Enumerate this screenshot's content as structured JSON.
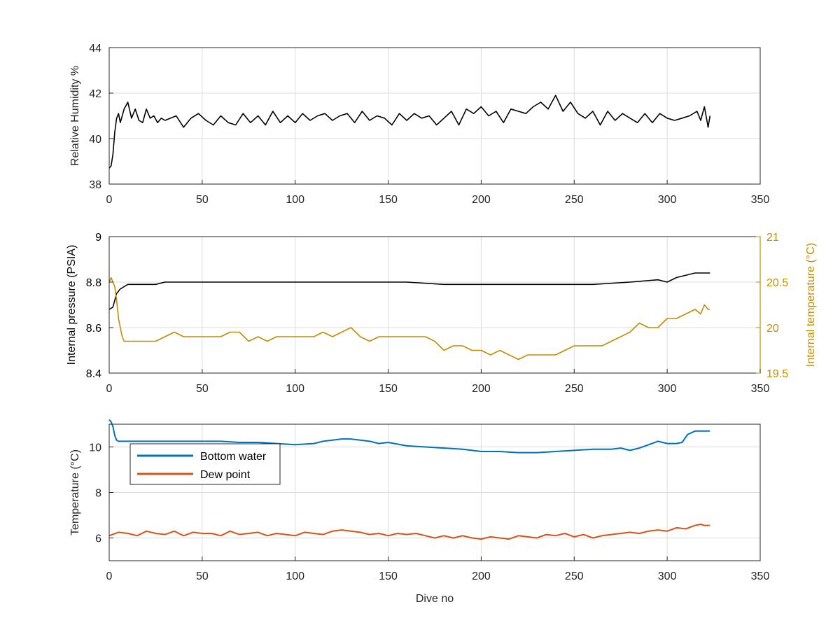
{
  "colors": {
    "black": "#000000",
    "pressure": "#000000",
    "internal_temperature": "#c08c00",
    "bottom_water": "#0072bd",
    "dew_point": "#d95319",
    "grid": "#dcdcdc",
    "axis": "#262626"
  },
  "chart_data": [
    {
      "type": "line",
      "id": "humidity",
      "title": "",
      "xlabel": "",
      "ylabel": "Relative Humidity %",
      "xlim": [
        0,
        350
      ],
      "ylim": [
        38,
        44
      ],
      "xticks": [
        0,
        50,
        100,
        150,
        200,
        250,
        300,
        350
      ],
      "yticks": [
        38,
        40,
        42,
        44
      ],
      "xtick_labels": [
        "0",
        "50",
        "100",
        "150",
        "200",
        "250",
        "300",
        "350"
      ],
      "ytick_labels": [
        "38",
        "40",
        "42",
        "44"
      ],
      "grid": true,
      "legend": "none",
      "series": [
        {
          "color_key": "black",
          "x": [
            0,
            1,
            2,
            3,
            4,
            5,
            6,
            8,
            10,
            12,
            14,
            16,
            18,
            20,
            22,
            24,
            26,
            28,
            30,
            33,
            36,
            40,
            44,
            48,
            52,
            56,
            60,
            64,
            68,
            72,
            76,
            80,
            84,
            88,
            92,
            96,
            100,
            104,
            108,
            112,
            116,
            120,
            124,
            128,
            132,
            136,
            140,
            144,
            148,
            152,
            156,
            160,
            164,
            168,
            172,
            176,
            180,
            184,
            188,
            192,
            196,
            200,
            204,
            208,
            212,
            216,
            220,
            224,
            228,
            232,
            236,
            240,
            244,
            248,
            252,
            256,
            260,
            264,
            268,
            272,
            276,
            280,
            284,
            288,
            292,
            296,
            300,
            304,
            308,
            312,
            316,
            318,
            320,
            322,
            323
          ],
          "y": [
            38.7,
            38.8,
            39.3,
            40.3,
            40.9,
            41.1,
            40.7,
            41.3,
            41.6,
            40.9,
            41.3,
            40.8,
            40.7,
            41.3,
            40.9,
            41.0,
            40.7,
            40.9,
            40.8,
            40.9,
            41.0,
            40.5,
            40.9,
            41.1,
            40.8,
            40.6,
            41.0,
            40.7,
            40.6,
            41.1,
            40.7,
            41.0,
            40.6,
            41.2,
            40.7,
            41.0,
            40.7,
            41.1,
            40.8,
            41.0,
            41.1,
            40.8,
            41.0,
            41.1,
            40.7,
            41.2,
            40.8,
            41.0,
            40.9,
            40.6,
            41.1,
            40.8,
            41.1,
            40.9,
            41.0,
            40.6,
            40.9,
            41.2,
            40.6,
            41.3,
            41.1,
            41.4,
            41.0,
            41.2,
            40.7,
            41.3,
            41.2,
            41.1,
            41.4,
            41.6,
            41.3,
            41.9,
            41.2,
            41.6,
            41.1,
            40.9,
            41.2,
            40.6,
            41.2,
            40.8,
            41.1,
            40.9,
            40.7,
            41.1,
            40.7,
            41.1,
            40.9,
            40.8,
            40.9,
            41.0,
            41.2,
            40.8,
            41.4,
            40.5,
            41.0
          ]
        }
      ]
    },
    {
      "type": "line",
      "id": "pressure-temperature",
      "title": "",
      "xlabel": "",
      "ylabel": "Internal pressure (PSIA)",
      "ylabel_right": "Internal temperature (°C)",
      "xlim": [
        0,
        350
      ],
      "ylim": [
        8.4,
        9
      ],
      "ylim_right": [
        19.5,
        21
      ],
      "xticks": [
        0,
        50,
        100,
        150,
        200,
        250,
        300,
        350
      ],
      "yticks": [
        8.4,
        8.6,
        8.8,
        9
      ],
      "yticks_right": [
        19.5,
        20,
        20.5,
        21
      ],
      "xtick_labels": [
        "0",
        "50",
        "100",
        "150",
        "200",
        "250",
        "300",
        "350"
      ],
      "ytick_labels": [
        "8.4",
        "8.6",
        "8.8",
        "9"
      ],
      "ytick_labels_right": [
        "19.5",
        "20",
        "20.5",
        "21"
      ],
      "grid": true,
      "legend": "none",
      "series": [
        {
          "axis": "left",
          "color_key": "pressure",
          "x": [
            0,
            2,
            4,
            6,
            8,
            10,
            15,
            20,
            25,
            30,
            40,
            60,
            80,
            100,
            120,
            140,
            160,
            180,
            200,
            220,
            240,
            260,
            280,
            295,
            300,
            305,
            315,
            323
          ],
          "y": [
            8.68,
            8.69,
            8.75,
            8.77,
            8.78,
            8.79,
            8.79,
            8.79,
            8.79,
            8.8,
            8.8,
            8.8,
            8.8,
            8.8,
            8.8,
            8.8,
            8.8,
            8.79,
            8.79,
            8.79,
            8.79,
            8.79,
            8.8,
            8.81,
            8.8,
            8.82,
            8.84,
            8.84
          ]
        },
        {
          "axis": "right",
          "color_key": "internal_temperature",
          "x": [
            0,
            1,
            2,
            3,
            4,
            5,
            6,
            7,
            8,
            10,
            15,
            20,
            25,
            30,
            35,
            40,
            45,
            50,
            55,
            60,
            65,
            70,
            75,
            80,
            85,
            90,
            95,
            100,
            105,
            110,
            115,
            120,
            125,
            130,
            135,
            140,
            145,
            150,
            155,
            160,
            165,
            170,
            175,
            180,
            185,
            190,
            195,
            200,
            205,
            210,
            215,
            220,
            225,
            230,
            235,
            240,
            245,
            250,
            255,
            260,
            265,
            270,
            275,
            280,
            285,
            290,
            295,
            300,
            305,
            310,
            315,
            318,
            320,
            322,
            323
          ],
          "y": [
            20.5,
            20.55,
            20.5,
            20.45,
            20.3,
            20.1,
            20.0,
            19.9,
            19.85,
            19.85,
            19.85,
            19.85,
            19.85,
            19.9,
            19.95,
            19.9,
            19.9,
            19.9,
            19.9,
            19.9,
            19.95,
            19.95,
            19.85,
            19.9,
            19.85,
            19.9,
            19.9,
            19.9,
            19.9,
            19.9,
            19.95,
            19.9,
            19.95,
            20.0,
            19.9,
            19.85,
            19.9,
            19.9,
            19.9,
            19.9,
            19.9,
            19.9,
            19.85,
            19.75,
            19.8,
            19.8,
            19.75,
            19.75,
            19.7,
            19.75,
            19.7,
            19.65,
            19.7,
            19.7,
            19.7,
            19.7,
            19.75,
            19.8,
            19.8,
            19.8,
            19.8,
            19.85,
            19.9,
            19.95,
            20.05,
            20.0,
            20.0,
            20.1,
            20.1,
            20.15,
            20.2,
            20.15,
            20.25,
            20.2,
            20.2
          ]
        }
      ]
    },
    {
      "type": "line",
      "id": "temperature",
      "title": "",
      "xlabel": "Dive no",
      "ylabel": "Temperature (°C)",
      "xlim": [
        0,
        350
      ],
      "ylim": [
        5,
        11
      ],
      "xticks": [
        0,
        50,
        100,
        150,
        200,
        250,
        300,
        350
      ],
      "yticks": [
        6,
        8,
        10
      ],
      "xtick_labels": [
        "0",
        "50",
        "100",
        "150",
        "200",
        "250",
        "300",
        "350"
      ],
      "ytick_labels": [
        "6",
        "8",
        "10"
      ],
      "grid": true,
      "legend": "top-left",
      "series": [
        {
          "name": "Bottom water",
          "color_key": "bottom_water",
          "x": [
            0,
            1,
            2,
            3,
            4,
            5,
            10,
            20,
            30,
            40,
            50,
            60,
            70,
            80,
            90,
            100,
            110,
            115,
            120,
            125,
            130,
            135,
            140,
            145,
            150,
            160,
            170,
            180,
            190,
            200,
            210,
            220,
            230,
            240,
            250,
            260,
            270,
            275,
            280,
            285,
            290,
            295,
            300,
            305,
            308,
            311,
            315,
            320,
            323
          ],
          "y": [
            11.2,
            11.1,
            10.9,
            10.5,
            10.3,
            10.25,
            10.25,
            10.25,
            10.25,
            10.25,
            10.25,
            10.25,
            10.2,
            10.2,
            10.15,
            10.1,
            10.15,
            10.25,
            10.3,
            10.35,
            10.35,
            10.3,
            10.25,
            10.15,
            10.2,
            10.05,
            10.0,
            9.95,
            9.9,
            9.8,
            9.8,
            9.75,
            9.75,
            9.8,
            9.85,
            9.9,
            9.9,
            9.95,
            9.85,
            9.95,
            10.1,
            10.25,
            10.15,
            10.15,
            10.2,
            10.55,
            10.7,
            10.7,
            10.7
          ]
        },
        {
          "name": "Dew point",
          "color_key": "dew_point",
          "x": [
            0,
            5,
            10,
            15,
            20,
            25,
            30,
            35,
            40,
            45,
            50,
            55,
            60,
            65,
            70,
            75,
            80,
            85,
            90,
            95,
            100,
            105,
            110,
            115,
            120,
            125,
            130,
            135,
            140,
            145,
            150,
            155,
            160,
            165,
            170,
            175,
            180,
            185,
            190,
            195,
            200,
            205,
            210,
            215,
            220,
            225,
            230,
            235,
            240,
            245,
            250,
            255,
            260,
            265,
            270,
            275,
            280,
            285,
            290,
            295,
            300,
            305,
            310,
            315,
            318,
            320,
            323
          ],
          "y": [
            6.1,
            6.25,
            6.2,
            6.1,
            6.3,
            6.2,
            6.15,
            6.3,
            6.1,
            6.25,
            6.2,
            6.2,
            6.1,
            6.3,
            6.15,
            6.2,
            6.25,
            6.1,
            6.2,
            6.15,
            6.1,
            6.25,
            6.2,
            6.15,
            6.3,
            6.35,
            6.3,
            6.25,
            6.15,
            6.2,
            6.1,
            6.2,
            6.15,
            6.2,
            6.1,
            6.0,
            6.1,
            6.0,
            6.1,
            6.0,
            5.95,
            6.05,
            6.0,
            5.95,
            6.1,
            6.05,
            6.0,
            6.15,
            6.1,
            6.2,
            6.05,
            6.15,
            6.0,
            6.1,
            6.15,
            6.2,
            6.25,
            6.2,
            6.3,
            6.35,
            6.3,
            6.45,
            6.4,
            6.55,
            6.6,
            6.55,
            6.55
          ]
        }
      ]
    }
  ]
}
